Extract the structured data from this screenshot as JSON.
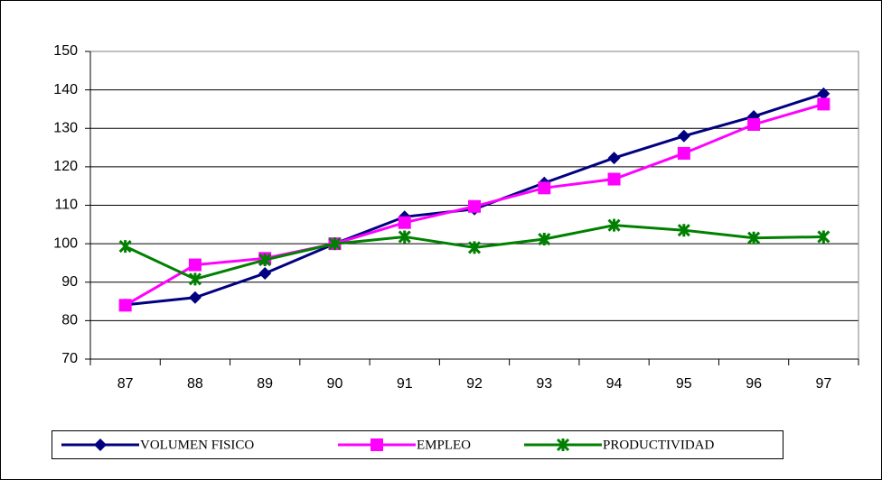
{
  "chart_data": {
    "type": "line",
    "categories": [
      "87",
      "88",
      "89",
      "90",
      "91",
      "92",
      "93",
      "94",
      "95",
      "96",
      "97"
    ],
    "series": [
      {
        "name": "VOLUMEN FISICO",
        "color": "#000080",
        "marker": "diamond",
        "values": [
          84.1,
          86,
          92.3,
          100,
          107,
          109,
          115.8,
          122.3,
          128,
          133.1,
          139
        ]
      },
      {
        "name": "EMPLEO",
        "color": "#ff00ff",
        "marker": "square",
        "values": [
          84,
          94.5,
          96.2,
          100,
          105.5,
          109.7,
          114.5,
          116.8,
          123.5,
          131,
          136.3
        ]
      },
      {
        "name": "PRODUCTIVIDAD",
        "color": "#008000",
        "marker": "star",
        "values": [
          99.3,
          90.8,
          95.8,
          100,
          101.8,
          99,
          101.2,
          104.8,
          103.5,
          101.5,
          101.8
        ]
      }
    ],
    "ylim": [
      70,
      150
    ],
    "yticks": [
      70,
      80,
      90,
      100,
      110,
      120,
      130,
      140,
      150
    ],
    "grid": true,
    "legend": "bottom"
  }
}
